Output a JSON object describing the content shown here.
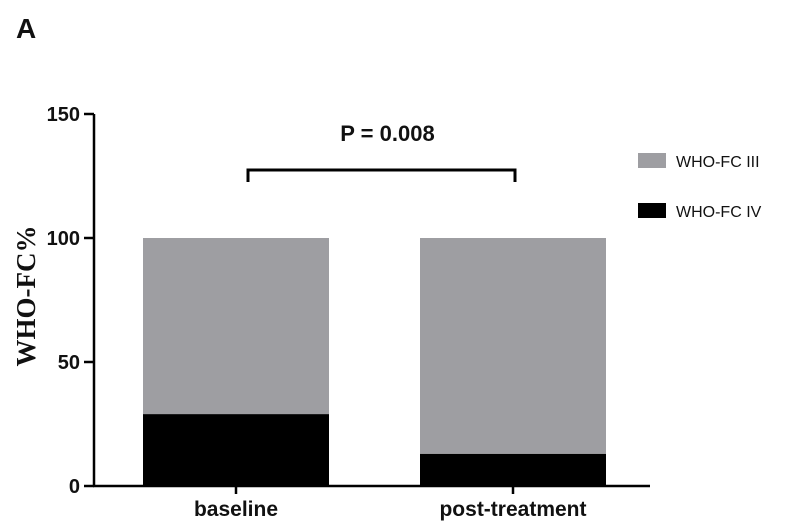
{
  "chart_data": {
    "type": "bar",
    "stacked": true,
    "panel_label": "A",
    "title": "",
    "xlabel": "",
    "ylabel": "WHO-FC%",
    "ylim": [
      0,
      150
    ],
    "yticks": [
      0,
      50,
      100,
      150
    ],
    "categories": [
      "baseline",
      "post-treatment"
    ],
    "series": [
      {
        "name": "WHO-FC IV",
        "values": [
          29,
          13
        ],
        "color": "#000000"
      },
      {
        "name": "WHO-FC III",
        "values": [
          71,
          87
        ],
        "color": "#9e9ea2"
      }
    ],
    "annotation": {
      "text": "P = 0.008",
      "between": [
        "baseline",
        "post-treatment"
      ]
    },
    "legend": {
      "placement": "right",
      "entries": [
        {
          "label": "WHO-FC III",
          "color": "#9e9ea2"
        },
        {
          "label": "WHO-FC IV",
          "color": "#000000"
        }
      ]
    },
    "grid": false
  }
}
